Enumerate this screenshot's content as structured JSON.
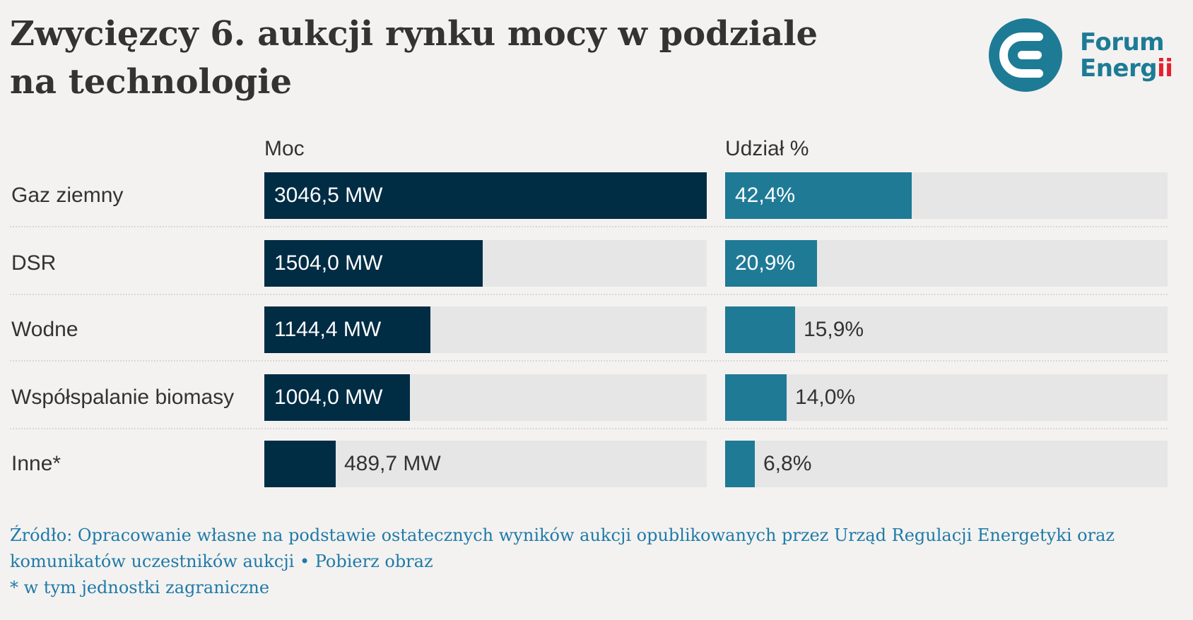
{
  "title": "Zwycięzcy 6. aukcji rynku mocy w podziale na technologie",
  "logo": {
    "line1": "Forum",
    "line2": "Energ",
    "line2_dots": "ii",
    "color": "#1e7b96",
    "accent": "#e5202f"
  },
  "colors": {
    "moc_bar": "#002c44",
    "share_bar": "#1f7a96",
    "track": "#e6e6e6",
    "background": "#f3f2f0",
    "footer_text": "#1f7aa8"
  },
  "chart_data": {
    "type": "bar",
    "orientation": "horizontal",
    "categories": [
      "Gaz ziemny",
      "DSR",
      "Wodne",
      "Współspalanie biomasy",
      "Inne*"
    ],
    "series": [
      {
        "name": "Moc",
        "values": [
          3046.5,
          1504.0,
          1144.4,
          1004.0,
          489.7
        ],
        "labels": [
          "3046,5 MW",
          "1504,0 MW",
          "1144,4 MW",
          "1004,0 MW",
          "489,7 MW"
        ],
        "max": 3046.5
      },
      {
        "name": "Udział %",
        "values": [
          42.4,
          20.9,
          15.9,
          14.0,
          6.8
        ],
        "labels": [
          "42,4%",
          "20,9%",
          "15,9%",
          "14,0%",
          "6,8%"
        ],
        "max": 100
      }
    ]
  },
  "footer": {
    "source_prefix": "Źródło: Opracowanie własne na podstawie ostatecznych wyników aukcji opublikowanych przez Urząd Regulacji Energetyki oraz komunikatów uczestników aukcji",
    "separator": " • ",
    "download_link": "Pobierz obraz",
    "note": "* w tym jednostki zagraniczne"
  }
}
